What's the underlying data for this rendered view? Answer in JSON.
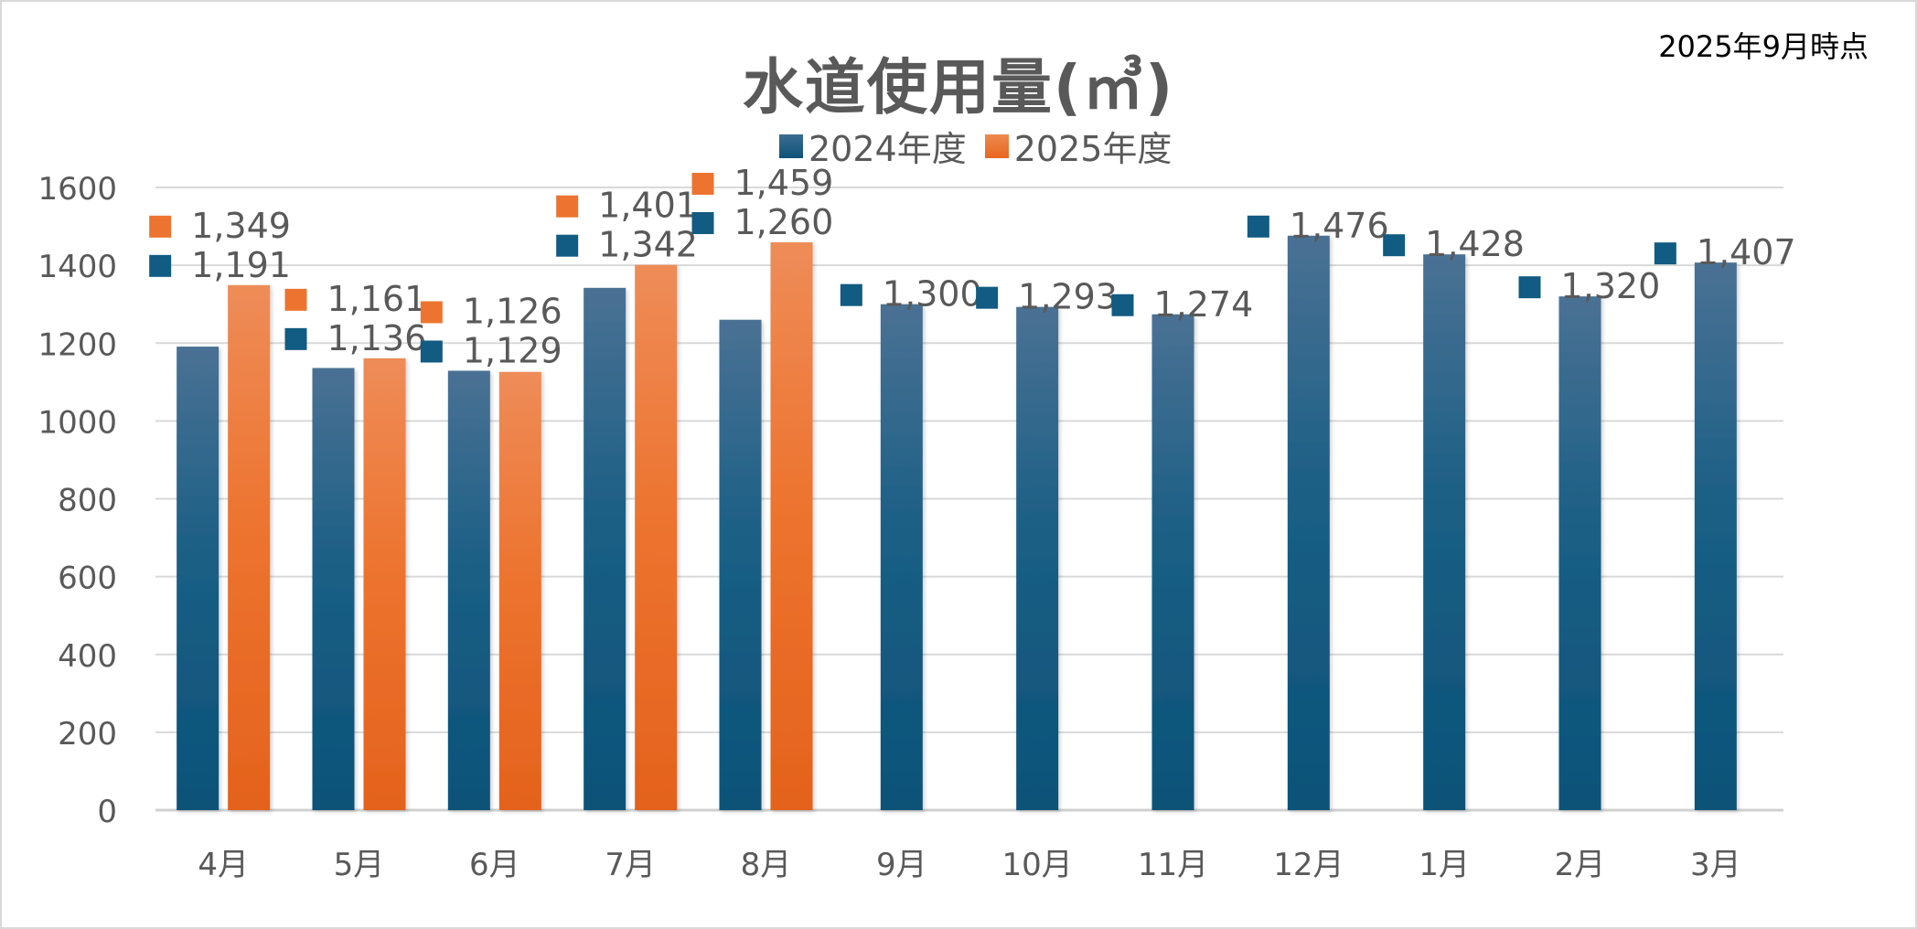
{
  "note": "2025年9月時点",
  "colors": {
    "series_2024": "#1f5a80",
    "series_2025": "#ed7430",
    "axis_text": "#595959",
    "grid": "#d9d9d9"
  },
  "chart_data": {
    "type": "bar",
    "title": "水道使用量(㎥)",
    "categories": [
      "4月",
      "5月",
      "6月",
      "7月",
      "8月",
      "9月",
      "10月",
      "11月",
      "12月",
      "1月",
      "2月",
      "3月"
    ],
    "series": [
      {
        "name": "2024年度",
        "values": [
          1191,
          1136,
          1129,
          1342,
          1260,
          1300,
          1293,
          1274,
          1476,
          1428,
          1320,
          1407
        ],
        "labels": [
          "1,191",
          "1,136",
          "1,129",
          "1,342",
          "1,260",
          "1,300",
          "1,293",
          "1,274",
          "1,476",
          "1,428",
          "1,320",
          "1,407"
        ]
      },
      {
        "name": "2025年度",
        "values": [
          1349,
          1161,
          1126,
          1401,
          1459,
          null,
          null,
          null,
          null,
          null,
          null,
          null
        ],
        "labels": [
          "1,349",
          "1,161",
          "1,126",
          "1,401",
          "1,459",
          null,
          null,
          null,
          null,
          null,
          null,
          null
        ]
      }
    ],
    "yticks": [
      "0",
      "200",
      "400",
      "600",
      "800",
      "1000",
      "1200",
      "1400",
      "1600"
    ],
    "ylim": [
      0,
      1600
    ],
    "xlabel": "",
    "ylabel": "",
    "grid": true,
    "legend_position": "top"
  }
}
